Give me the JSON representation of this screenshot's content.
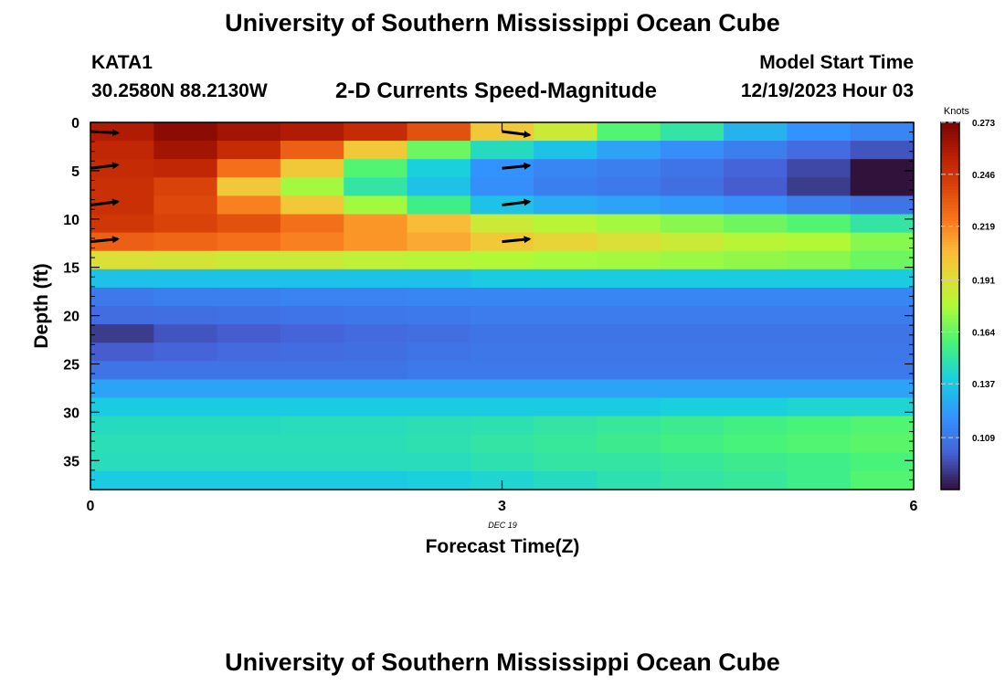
{
  "title_top": "University of Southern Mississippi Ocean Cube",
  "title_bottom": "University of Southern Mississippi Ocean Cube",
  "station": {
    "id": "KATA1",
    "coords": "30.2580N  88.2130W"
  },
  "model": {
    "label": "Model Start Time",
    "time": "12/19/2023 Hour 03"
  },
  "chart_data": {
    "type": "heatmap",
    "title": "2-D Currents Speed-Magnitude",
    "xlabel": "Forecast Time(Z)",
    "ylabel": "Depth (ft)",
    "x_date_label": "DEC 19",
    "xlim": [
      0,
      6
    ],
    "ylim": [
      38,
      0
    ],
    "x_ticks": [
      "0",
      "3",
      "6"
    ],
    "y_ticks": [
      "0",
      "5",
      "10",
      "15",
      "20",
      "25",
      "30",
      "35"
    ],
    "y_tick_values": [
      0,
      5,
      10,
      15,
      20,
      25,
      30,
      35
    ],
    "x_tick_values": [
      0,
      3,
      6
    ],
    "x": [
      0,
      0.5,
      1,
      1.5,
      2,
      2.5,
      3,
      3.5,
      4,
      4.5,
      5,
      5.5,
      6
    ],
    "depths": [
      0,
      2,
      4,
      6,
      8,
      10,
      12,
      14,
      16,
      18,
      20,
      22,
      24,
      26,
      28,
      30,
      32,
      34,
      36,
      38
    ],
    "values": [
      [
        0.258,
        0.268,
        0.262,
        0.258,
        0.25,
        0.235,
        0.2,
        0.185,
        0.16,
        0.15,
        0.13,
        0.12,
        0.115
      ],
      [
        0.252,
        0.262,
        0.25,
        0.23,
        0.2,
        0.165,
        0.145,
        0.135,
        0.125,
        0.118,
        0.112,
        0.105,
        0.098
      ],
      [
        0.25,
        0.252,
        0.225,
        0.2,
        0.16,
        0.14,
        0.12,
        0.115,
        0.112,
        0.108,
        0.102,
        0.095,
        0.08
      ],
      [
        0.248,
        0.24,
        0.2,
        0.175,
        0.15,
        0.135,
        0.118,
        0.112,
        0.11,
        0.106,
        0.1,
        0.092,
        0.075
      ],
      [
        0.248,
        0.238,
        0.22,
        0.2,
        0.175,
        0.155,
        0.135,
        0.128,
        0.125,
        0.122,
        0.118,
        0.112,
        0.108
      ],
      [
        0.245,
        0.24,
        0.235,
        0.225,
        0.215,
        0.205,
        0.185,
        0.18,
        0.175,
        0.17,
        0.165,
        0.16,
        0.15
      ],
      [
        0.23,
        0.228,
        0.225,
        0.22,
        0.215,
        0.21,
        0.2,
        0.195,
        0.19,
        0.185,
        0.18,
        0.178,
        0.17
      ],
      [
        0.19,
        0.188,
        0.185,
        0.185,
        0.182,
        0.18,
        0.178,
        0.176,
        0.175,
        0.174,
        0.172,
        0.17,
        0.165
      ],
      [
        0.135,
        0.135,
        0.135,
        0.135,
        0.135,
        0.135,
        0.138,
        0.138,
        0.138,
        0.138,
        0.138,
        0.138,
        0.138
      ],
      [
        0.11,
        0.112,
        0.112,
        0.114,
        0.114,
        0.115,
        0.115,
        0.115,
        0.115,
        0.115,
        0.115,
        0.115,
        0.115
      ],
      [
        0.105,
        0.106,
        0.107,
        0.108,
        0.109,
        0.11,
        0.111,
        0.111,
        0.111,
        0.111,
        0.111,
        0.111,
        0.111
      ],
      [
        0.092,
        0.098,
        0.1,
        0.102,
        0.104,
        0.106,
        0.108,
        0.108,
        0.108,
        0.108,
        0.108,
        0.108,
        0.108
      ],
      [
        0.1,
        0.102,
        0.104,
        0.105,
        0.106,
        0.108,
        0.109,
        0.109,
        0.109,
        0.109,
        0.109,
        0.109,
        0.109
      ],
      [
        0.108,
        0.108,
        0.108,
        0.108,
        0.108,
        0.11,
        0.11,
        0.11,
        0.11,
        0.11,
        0.11,
        0.11,
        0.11
      ],
      [
        0.125,
        0.125,
        0.125,
        0.125,
        0.125,
        0.125,
        0.125,
        0.125,
        0.125,
        0.125,
        0.125,
        0.125,
        0.125
      ],
      [
        0.138,
        0.138,
        0.138,
        0.138,
        0.138,
        0.138,
        0.138,
        0.138,
        0.138,
        0.14,
        0.14,
        0.142,
        0.142
      ],
      [
        0.145,
        0.145,
        0.145,
        0.146,
        0.146,
        0.147,
        0.148,
        0.15,
        0.152,
        0.154,
        0.156,
        0.158,
        0.16
      ],
      [
        0.147,
        0.147,
        0.147,
        0.147,
        0.147,
        0.148,
        0.15,
        0.152,
        0.154,
        0.156,
        0.158,
        0.16,
        0.162
      ],
      [
        0.146,
        0.146,
        0.146,
        0.146,
        0.146,
        0.146,
        0.148,
        0.15,
        0.15,
        0.152,
        0.154,
        0.155,
        0.158
      ],
      [
        0.138,
        0.138,
        0.138,
        0.138,
        0.138,
        0.14,
        0.142,
        0.145,
        0.148,
        0.15,
        0.152,
        0.155,
        0.16
      ]
    ],
    "vectors": [
      {
        "x": 0,
        "depth": 0,
        "u": 1,
        "v": -0.1
      },
      {
        "x": 0,
        "depth": 4,
        "u": 1,
        "v": 0.25
      },
      {
        "x": 0,
        "depth": 8,
        "u": 1,
        "v": 0.25
      },
      {
        "x": 0,
        "depth": 12,
        "u": 1,
        "v": 0.2
      },
      {
        "x": 3,
        "depth": 0,
        "u": 1,
        "v": -0.25
      },
      {
        "x": 3,
        "depth": 4,
        "u": 1,
        "v": 0.2
      },
      {
        "x": 3,
        "depth": 8,
        "u": 1,
        "v": 0.25
      },
      {
        "x": 3,
        "depth": 12,
        "u": 1,
        "v": 0.2
      }
    ],
    "colorbar": {
      "label": "Knots",
      "min": 0.082,
      "max": 0.273,
      "ticks": [
        "0.273",
        "0.246",
        "0.219",
        "0.191",
        "0.164",
        "0.137",
        "0.109"
      ],
      "tick_values": [
        0.273,
        0.246,
        0.219,
        0.191,
        0.164,
        0.137,
        0.109
      ]
    }
  }
}
